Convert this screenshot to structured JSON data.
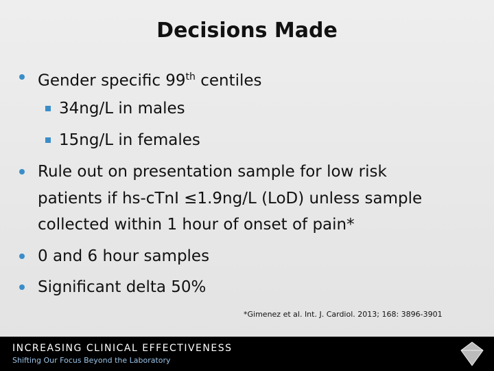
{
  "slide": {
    "title": "Decisions Made",
    "bullets": [
      {
        "parts": [
          "Gender specific 99",
          "th",
          " centiles"
        ],
        "sub": [
          "34ng/L in males",
          "15ng/L in females"
        ]
      },
      {
        "lines": [
          "Rule out on presentation sample for low risk",
          "patients if hs-cTnI ≤1.9ng/L (LoD) unless sample",
          "collected within 1 hour of onset of pain*"
        ]
      },
      {
        "lines": [
          "0 and 6 hour samples"
        ]
      },
      {
        "lines": [
          "Significant delta 50%"
        ]
      }
    ],
    "footnote": "*Gimenez et al. Int. J. Cardiol. 2013; 168: 3896-3901",
    "footer": {
      "title": "INCREASING CLINICAL EFFECTIVENESS",
      "subtitle": "Shifting Our Focus Beyond the Laboratory"
    }
  }
}
